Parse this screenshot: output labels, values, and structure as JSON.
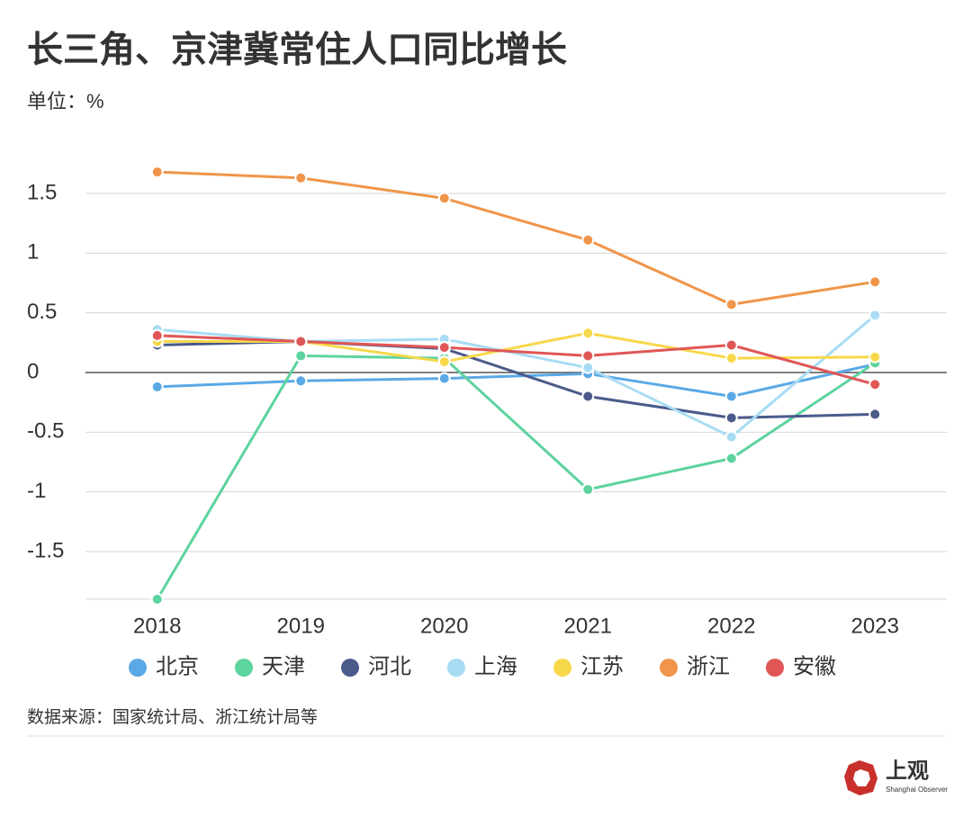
{
  "chart_data": {
    "type": "line",
    "title": "长三角、京津冀常住人口同比增长",
    "subtitle": "单位：%",
    "categories": [
      "2018",
      "2019",
      "2020",
      "2021",
      "2022",
      "2023"
    ],
    "series": [
      {
        "name": "北京",
        "color": "#5aa9e6",
        "values": [
          -0.12,
          -0.07,
          -0.05,
          -0.01,
          -0.2,
          0.07
        ]
      },
      {
        "name": "天津",
        "color": "#5dd39e",
        "values": [
          -1.9,
          0.14,
          0.12,
          -0.98,
          -0.72,
          0.08
        ]
      },
      {
        "name": "河北",
        "color": "#4a5a8a",
        "values": [
          0.23,
          0.26,
          0.2,
          -0.2,
          -0.38,
          -0.35
        ]
      },
      {
        "name": "上海",
        "color": "#a8dcf5",
        "values": [
          0.36,
          0.26,
          0.28,
          0.04,
          -0.54,
          0.48
        ]
      },
      {
        "name": "江苏",
        "color": "#f7d84a",
        "values": [
          0.26,
          0.26,
          0.09,
          0.33,
          0.12,
          0.13
        ]
      },
      {
        "name": "浙江",
        "color": "#f0954a",
        "values": [
          1.68,
          1.63,
          1.46,
          1.11,
          0.57,
          0.76
        ]
      },
      {
        "name": "安徽",
        "color": "#e05656",
        "values": [
          0.31,
          0.26,
          0.21,
          0.14,
          0.23,
          -0.1
        ]
      }
    ],
    "ylim": [
      -1.9,
      1.9
    ],
    "yticks": [
      1.5,
      1,
      0.5,
      0,
      -0.5,
      -1,
      -1.5
    ],
    "grid": true,
    "source": "数据来源：国家统计局、浙江统计局等"
  },
  "footer": {
    "brand": "上观",
    "brand_en": "Shanghai Observer"
  }
}
